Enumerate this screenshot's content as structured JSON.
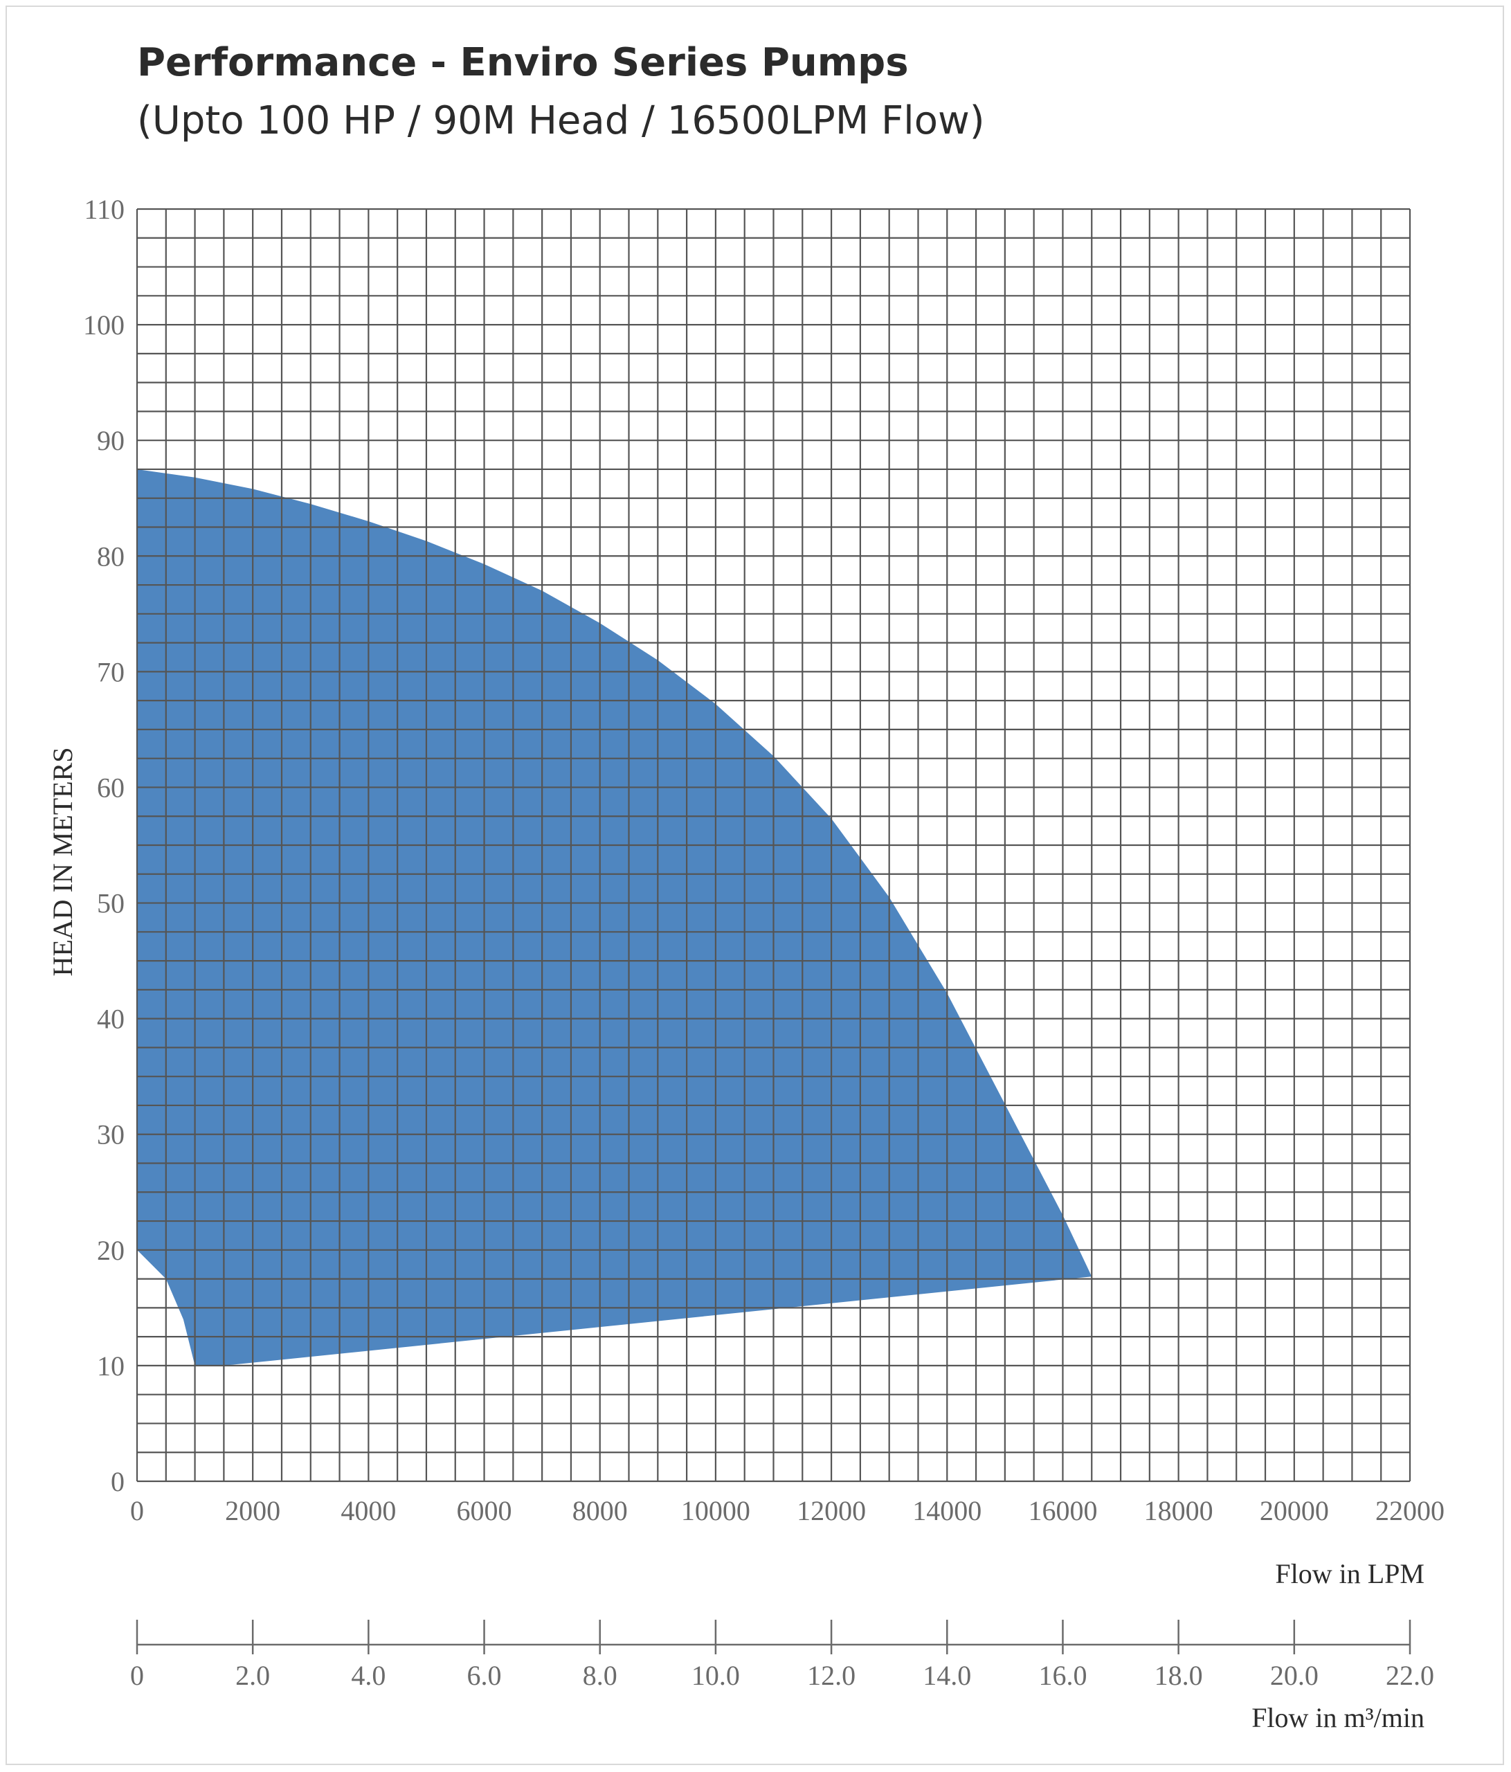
{
  "header": {
    "title": "Performance - Enviro Series Pumps",
    "subtitle": "(Upto 100 HP / 90M Head / 16500LPM Flow)"
  },
  "colors": {
    "area_fill": "#4f86c0",
    "grid_line": "#555555",
    "tick_text": "#6b6b6b"
  },
  "chart_data": {
    "type": "area",
    "title": "Performance - Enviro Series Pumps",
    "subtitle": "(Upto 100 HP / 90M Head / 16500LPM Flow)",
    "ylabel": "HEAD IN METERS",
    "xlabel": "Flow in LPM",
    "xlabel_secondary": "Flow in m³/min",
    "xlim": [
      0,
      22000
    ],
    "ylim": [
      0,
      110
    ],
    "x_ticks": [
      "0",
      "2000",
      "4000",
      "6000",
      "8000",
      "10000",
      "12000",
      "14000",
      "16000",
      "18000",
      "20000",
      "22000"
    ],
    "y_ticks": [
      "0",
      "10",
      "20",
      "30",
      "40",
      "50",
      "60",
      "70",
      "80",
      "90",
      "100",
      "110"
    ],
    "secondary_axis": {
      "label": "Flow in m³/min",
      "range": [
        0,
        22
      ],
      "ticks": [
        "0",
        "2.0",
        "4.0",
        "6.0",
        "8.0",
        "10.0",
        "12.0",
        "14.0",
        "16.0",
        "18.0",
        "20.0",
        "22.0"
      ]
    },
    "grid": true,
    "grid_minor_step": {
      "x": 500,
      "y": 2.5
    },
    "series": [
      {
        "upper_boundary": [
          [
            0,
            87.5
          ],
          [
            1000,
            86.8
          ],
          [
            2000,
            85.8
          ],
          [
            3000,
            84.5
          ],
          [
            4000,
            83.0
          ],
          [
            5000,
            81.3
          ],
          [
            6000,
            79.3
          ],
          [
            7000,
            77.0
          ],
          [
            8000,
            74.2
          ],
          [
            9000,
            71.0
          ],
          [
            10000,
            67.2
          ],
          [
            11000,
            62.7
          ],
          [
            12000,
            57.3
          ],
          [
            13000,
            50.5
          ],
          [
            14000,
            42.2
          ],
          [
            15000,
            32.6
          ],
          [
            16000,
            23.0
          ],
          [
            16500,
            17.7
          ]
        ],
        "lower_boundary": [
          [
            16500,
            17.7
          ],
          [
            1500,
            10.0
          ],
          [
            1000,
            10.0
          ]
        ],
        "left_boundary": [
          [
            1000,
            10.0
          ],
          [
            800,
            14.0
          ],
          [
            500,
            17.5
          ],
          [
            0,
            20.0
          ]
        ]
      }
    ]
  }
}
